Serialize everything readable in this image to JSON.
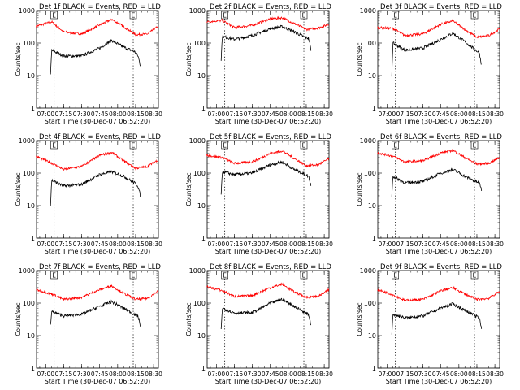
{
  "figure": {
    "xlabel": "Start Time (30-Dec-07 06:52:20)",
    "ylabel": "Counts/sec"
  },
  "chart_data": [
    {
      "type": "line",
      "title": "Det 1f BLACK = Events, RED = LLD",
      "xlabel": "Start Time (30-Dec-07 06:52:20)",
      "ylabel": "Counts/sec",
      "x_ticks": [
        "07:00",
        "07:15",
        "07:30",
        "07:45",
        "08:00",
        "08:15",
        "08:30"
      ],
      "y_ticks": [
        "1",
        "10",
        "100",
        "1000"
      ],
      "ylog": true,
      "xlim": [
        "06:52:20",
        "08:34:00"
      ],
      "ylim": [
        1,
        1000
      ],
      "markers": [
        {
          "time": "07:07",
          "label": "E"
        },
        {
          "time": "08:13",
          "label": "E"
        }
      ],
      "series": [
        {
          "name": "LLD",
          "color": "#ff0000",
          "x": [
            "06:52",
            "07:05",
            "07:15",
            "07:30",
            "07:45",
            "07:55",
            "08:05",
            "08:15",
            "08:25",
            "08:34"
          ],
          "values": [
            330,
            450,
            220,
            190,
            360,
            540,
            320,
            180,
            190,
            330
          ]
        },
        {
          "name": "Events",
          "color": "#000000",
          "x": [
            "07:04",
            "07:05",
            "07:15",
            "07:30",
            "07:45",
            "07:55",
            "08:05",
            "08:14",
            "08:17",
            "08:19"
          ],
          "values": [
            10,
            60,
            40,
            40,
            70,
            120,
            75,
            55,
            40,
            20
          ]
        }
      ]
    },
    {
      "type": "line",
      "title": "Det 2f BLACK = Events, RED = LLD",
      "xlabel": "Start Time (30-Dec-07 06:52:20)",
      "ylabel": "Counts/sec",
      "x_ticks": [
        "07:00",
        "07:15",
        "07:30",
        "07:45",
        "08:00",
        "08:15",
        "08:30"
      ],
      "y_ticks": [
        "1",
        "10",
        "100",
        "1000"
      ],
      "ylog": true,
      "xlim": [
        "06:52:20",
        "08:34:00"
      ],
      "ylim": [
        1,
        1000
      ],
      "markers": [
        {
          "time": "07:07",
          "label": "E"
        },
        {
          "time": "08:13",
          "label": "E"
        }
      ],
      "series": [
        {
          "name": "LLD",
          "color": "#ff0000",
          "x": [
            "06:52",
            "07:05",
            "07:15",
            "07:30",
            "07:45",
            "07:55",
            "08:05",
            "08:15",
            "08:25",
            "08:34"
          ],
          "values": [
            450,
            500,
            300,
            350,
            560,
            600,
            400,
            260,
            290,
            380
          ]
        },
        {
          "name": "Events",
          "color": "#000000",
          "x": [
            "07:04",
            "07:05",
            "07:15",
            "07:30",
            "07:45",
            "07:55",
            "08:05",
            "08:14",
            "08:17",
            "08:19"
          ],
          "values": [
            30,
            160,
            130,
            170,
            280,
            320,
            220,
            150,
            140,
            60
          ]
        }
      ]
    },
    {
      "type": "line",
      "title": "Det 3f BLACK = Events, RED = LLD",
      "xlabel": "Start Time (30-Dec-07 06:52:20)",
      "ylabel": "Counts/sec",
      "x_ticks": [
        "07:00",
        "07:15",
        "07:30",
        "07:45",
        "08:00",
        "08:15",
        "08:30"
      ],
      "y_ticks": [
        "1",
        "10",
        "100",
        "1000"
      ],
      "ylog": true,
      "xlim": [
        "06:52:20",
        "08:34:00"
      ],
      "ylim": [
        1,
        1000
      ],
      "markers": [
        {
          "time": "07:07",
          "label": "E"
        },
        {
          "time": "08:13",
          "label": "E"
        }
      ],
      "series": [
        {
          "name": "LLD",
          "color": "#ff0000",
          "x": [
            "06:52",
            "07:05",
            "07:15",
            "07:30",
            "07:45",
            "07:55",
            "08:05",
            "08:15",
            "08:25",
            "08:34"
          ],
          "values": [
            300,
            280,
            170,
            190,
            380,
            480,
            260,
            150,
            170,
            270
          ]
        },
        {
          "name": "Events",
          "color": "#000000",
          "x": [
            "07:04",
            "07:05",
            "07:15",
            "07:30",
            "07:45",
            "07:55",
            "08:05",
            "08:14",
            "08:17",
            "08:19"
          ],
          "values": [
            10,
            100,
            60,
            70,
            130,
            200,
            110,
            60,
            50,
            20
          ]
        }
      ]
    },
    {
      "type": "line",
      "title": "Det 4f BLACK = Events, RED = LLD",
      "xlabel": "Start Time (30-Dec-07 06:52:20)",
      "ylabel": "Counts/sec",
      "x_ticks": [
        "07:00",
        "07:15",
        "07:30",
        "07:45",
        "08:00",
        "08:15",
        "08:30"
      ],
      "y_ticks": [
        "1",
        "10",
        "100",
        "1000"
      ],
      "ylog": true,
      "xlim": [
        "06:52:20",
        "08:34:00"
      ],
      "ylim": [
        1,
        1000
      ],
      "markers": [
        {
          "time": "07:07",
          "label": "E"
        },
        {
          "time": "08:13",
          "label": "E"
        }
      ],
      "series": [
        {
          "name": "LLD",
          "color": "#ff0000",
          "x": [
            "06:52",
            "07:05",
            "07:15",
            "07:30",
            "07:45",
            "07:55",
            "08:05",
            "08:15",
            "08:25",
            "08:34"
          ],
          "values": [
            330,
            200,
            130,
            160,
            350,
            430,
            240,
            140,
            160,
            260
          ]
        },
        {
          "name": "Events",
          "color": "#000000",
          "x": [
            "07:04",
            "07:05",
            "07:15",
            "07:30",
            "07:45",
            "07:55",
            "08:05",
            "08:14",
            "08:17",
            "08:19"
          ],
          "values": [
            10,
            60,
            40,
            45,
            90,
            110,
            80,
            50,
            40,
            20
          ]
        }
      ]
    },
    {
      "type": "line",
      "title": "Det 5f BLACK = Events, RED = LLD",
      "xlabel": "Start Time (30-Dec-07 06:52:20)",
      "ylabel": "Counts/sec",
      "x_ticks": [
        "07:00",
        "07:15",
        "07:30",
        "07:45",
        "08:00",
        "08:15",
        "08:30"
      ],
      "y_ticks": [
        "1",
        "10",
        "100",
        "1000"
      ],
      "ylog": true,
      "xlim": [
        "06:52:20",
        "08:34:00"
      ],
      "ylim": [
        1,
        1000
      ],
      "markers": [
        {
          "time": "07:07",
          "label": "E"
        },
        {
          "time": "08:13",
          "label": "E"
        }
      ],
      "series": [
        {
          "name": "LLD",
          "color": "#ff0000",
          "x": [
            "06:52",
            "07:05",
            "07:15",
            "07:30",
            "07:45",
            "07:55",
            "08:05",
            "08:15",
            "08:25",
            "08:34"
          ],
          "values": [
            350,
            300,
            200,
            220,
            400,
            480,
            280,
            170,
            180,
            280
          ]
        },
        {
          "name": "Events",
          "color": "#000000",
          "x": [
            "07:04",
            "07:05",
            "07:15",
            "07:30",
            "07:45",
            "07:55",
            "08:05",
            "08:14",
            "08:17",
            "08:19"
          ],
          "values": [
            20,
            110,
            90,
            100,
            180,
            220,
            130,
            90,
            80,
            40
          ]
        }
      ]
    },
    {
      "type": "line",
      "title": "Det 6f BLACK = Events, RED = LLD",
      "xlabel": "Start Time (30-Dec-07 06:52:20)",
      "ylabel": "Counts/sec",
      "x_ticks": [
        "07:00",
        "07:15",
        "07:30",
        "07:45",
        "08:00",
        "08:15",
        "08:30"
      ],
      "y_ticks": [
        "1",
        "10",
        "100",
        "1000"
      ],
      "ylog": true,
      "xlim": [
        "06:52:20",
        "08:34:00"
      ],
      "ylim": [
        1,
        1000
      ],
      "markers": [
        {
          "time": "07:07",
          "label": "E"
        },
        {
          "time": "08:13",
          "label": "E"
        }
      ],
      "series": [
        {
          "name": "LLD",
          "color": "#ff0000",
          "x": [
            "06:52",
            "07:05",
            "07:15",
            "07:30",
            "07:45",
            "07:55",
            "08:05",
            "08:15",
            "08:25",
            "08:34"
          ],
          "values": [
            420,
            330,
            220,
            240,
            420,
            500,
            300,
            190,
            200,
            300
          ]
        },
        {
          "name": "Events",
          "color": "#000000",
          "x": [
            "07:04",
            "07:05",
            "07:15",
            "07:30",
            "07:45",
            "07:55",
            "08:05",
            "08:14",
            "08:17",
            "08:19"
          ],
          "values": [
            20,
            80,
            50,
            55,
            100,
            130,
            80,
            55,
            50,
            30
          ]
        }
      ]
    },
    {
      "type": "line",
      "title": "Det 7f BLACK = Events, RED = LLD",
      "xlabel": "Start Time (30-Dec-07 06:52:20)",
      "ylabel": "Counts/sec",
      "x_ticks": [
        "07:00",
        "07:15",
        "07:30",
        "07:45",
        "08:00",
        "08:15",
        "08:30"
      ],
      "y_ticks": [
        "1",
        "10",
        "100",
        "1000"
      ],
      "ylog": true,
      "xlim": [
        "06:52:20",
        "08:34:00"
      ],
      "ylim": [
        1,
        1000
      ],
      "markers": [
        {
          "time": "07:07",
          "label": "E"
        },
        {
          "time": "08:13",
          "label": "E"
        }
      ],
      "series": [
        {
          "name": "LLD",
          "color": "#ff0000",
          "x": [
            "06:52",
            "07:05",
            "07:15",
            "07:30",
            "07:45",
            "07:55",
            "08:05",
            "08:15",
            "08:25",
            "08:34"
          ],
          "values": [
            260,
            190,
            130,
            150,
            260,
            340,
            200,
            130,
            140,
            240
          ]
        },
        {
          "name": "Events",
          "color": "#000000",
          "x": [
            "07:04",
            "07:05",
            "07:15",
            "07:30",
            "07:45",
            "07:55",
            "08:05",
            "08:14",
            "08:17",
            "08:19"
          ],
          "values": [
            20,
            55,
            40,
            45,
            80,
            110,
            70,
            45,
            40,
            20
          ]
        }
      ]
    },
    {
      "type": "line",
      "title": "Det 8f BLACK = Events, RED = LLD",
      "xlabel": "Start Time (30-Dec-07 06:52:20)",
      "ylabel": "Counts/sec",
      "x_ticks": [
        "07:00",
        "07:15",
        "07:30",
        "07:45",
        "08:00",
        "08:15",
        "08:30"
      ],
      "y_ticks": [
        "1",
        "10",
        "100",
        "1000"
      ],
      "ylog": true,
      "xlim": [
        "06:52:20",
        "08:34:00"
      ],
      "ylim": [
        1,
        1000
      ],
      "markers": [
        {
          "time": "07:07",
          "label": "E"
        },
        {
          "time": "08:13",
          "label": "E"
        }
      ],
      "series": [
        {
          "name": "LLD",
          "color": "#ff0000",
          "x": [
            "06:52",
            "07:05",
            "07:15",
            "07:30",
            "07:45",
            "07:55",
            "08:05",
            "08:15",
            "08:25",
            "08:34"
          ],
          "values": [
            320,
            240,
            160,
            170,
            300,
            380,
            220,
            150,
            160,
            260
          ]
        },
        {
          "name": "Events",
          "color": "#000000",
          "x": [
            "07:04",
            "07:05",
            "07:15",
            "07:30",
            "07:45",
            "07:55",
            "08:05",
            "08:14",
            "08:17",
            "08:19"
          ],
          "values": [
            15,
            70,
            50,
            50,
            100,
            130,
            80,
            50,
            45,
            20
          ]
        }
      ]
    },
    {
      "type": "line",
      "title": "Det 9f BLACK = Events, RED = LLD",
      "xlabel": "Start Time (30-Dec-07 06:52:20)",
      "ylabel": "Counts/sec",
      "x_ticks": [
        "07:00",
        "07:15",
        "07:30",
        "07:45",
        "08:00",
        "08:15",
        "08:30"
      ],
      "y_ticks": [
        "1",
        "10",
        "100",
        "1000"
      ],
      "ylog": true,
      "xlim": [
        "06:52:20",
        "08:34:00"
      ],
      "ylim": [
        1,
        1000
      ],
      "markers": [
        {
          "time": "07:07",
          "label": "E"
        },
        {
          "time": "08:13",
          "label": "E"
        }
      ],
      "series": [
        {
          "name": "LLD",
          "color": "#ff0000",
          "x": [
            "06:52",
            "07:05",
            "07:15",
            "07:30",
            "07:45",
            "07:55",
            "08:05",
            "08:15",
            "08:25",
            "08:34"
          ],
          "values": [
            260,
            180,
            120,
            130,
            240,
            300,
            190,
            130,
            140,
            230
          ]
        },
        {
          "name": "Events",
          "color": "#000000",
          "x": [
            "07:04",
            "07:05",
            "07:15",
            "07:30",
            "07:45",
            "07:55",
            "08:05",
            "08:14",
            "08:17",
            "08:19"
          ],
          "values": [
            10,
            45,
            35,
            40,
            70,
            95,
            60,
            40,
            35,
            15
          ]
        }
      ]
    }
  ]
}
